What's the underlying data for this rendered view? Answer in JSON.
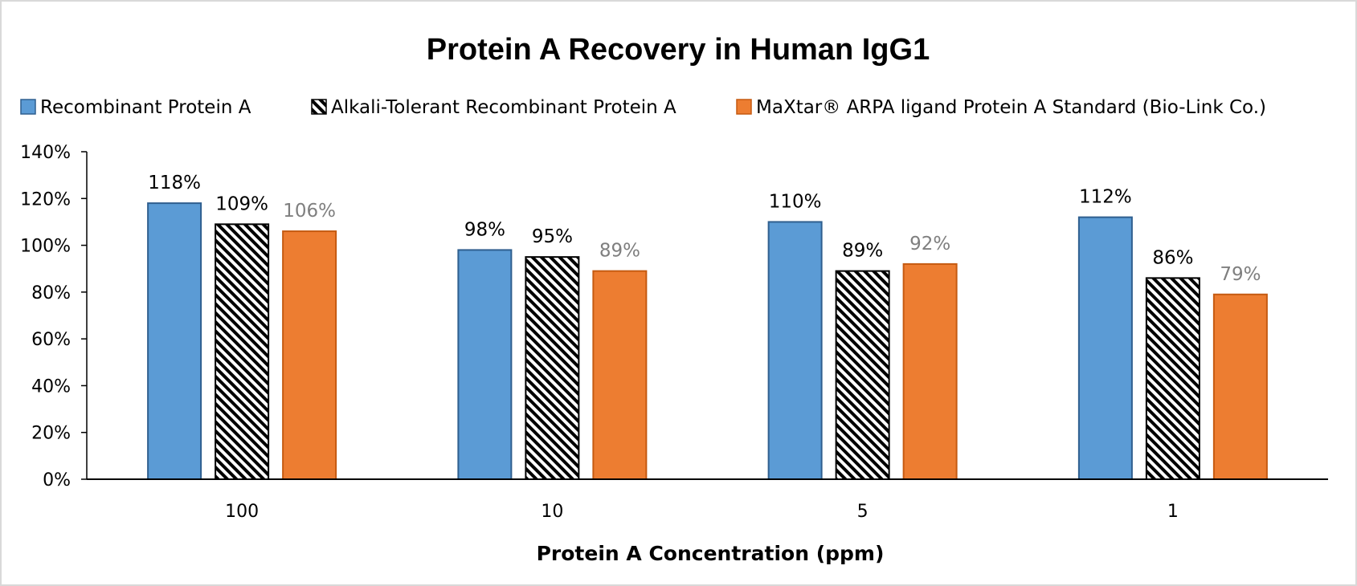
{
  "chart_data": {
    "type": "bar",
    "title": "Protein A Recovery in Human IgG1",
    "xlabel": "Protein A Concentration (ppm)",
    "ylabel": "",
    "categories": [
      "100",
      "10",
      "5",
      "1"
    ],
    "ylim": [
      0,
      140
    ],
    "yticks": [
      0,
      20,
      40,
      60,
      80,
      100,
      120,
      140
    ],
    "ytick_labels": [
      "0%",
      "20%",
      "40%",
      "60%",
      "80%",
      "100%",
      "120%",
      "140%"
    ],
    "series": [
      {
        "name": "Recombinant Protein A",
        "values": [
          118,
          98,
          110,
          112
        ],
        "labels": [
          "118%",
          "98%",
          "110%",
          "112%"
        ],
        "color": "#5b9bd5",
        "pattern": "solid"
      },
      {
        "name": "Alkali-Tolerant Recombinant Protein A",
        "values": [
          109,
          95,
          89,
          86
        ],
        "labels": [
          "109%",
          "95%",
          "89%",
          "86%"
        ],
        "color": "#000000",
        "pattern": "diagonal-hatch"
      },
      {
        "name": "MaXtar® ARPA ligand Protein A Standard (Bio-Link Co.)",
        "values": [
          106,
          89,
          92,
          79
        ],
        "labels": [
          "106%",
          "89%",
          "92%",
          "79%"
        ],
        "color": "#ed7d31",
        "pattern": "solid"
      }
    ],
    "data_label_colors": [
      "#000000",
      "#000000",
      "#7f7f7f"
    ],
    "grid": false,
    "legend_position": "top"
  }
}
